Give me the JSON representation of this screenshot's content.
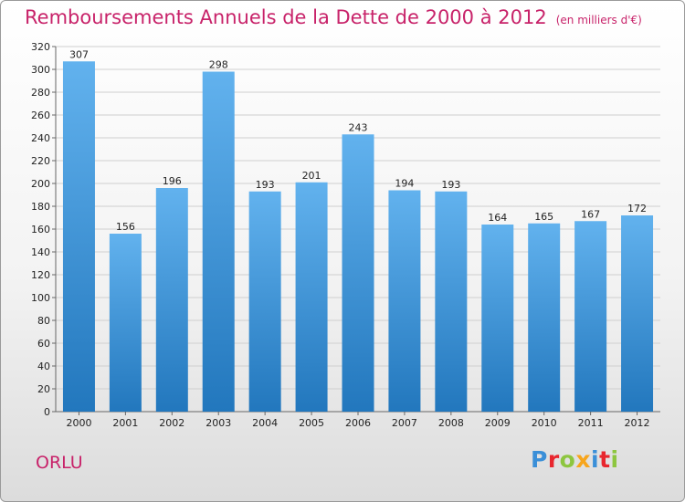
{
  "header": {
    "title": "Remboursements Annuels de la Dette de 2000 à 2012",
    "unit": "(en milliers d'€)"
  },
  "commune": "ORLU",
  "logo": {
    "text": "Proxiti",
    "letter_colors": [
      "#3a8fd8",
      "#e8262e",
      "#8dc63f",
      "#f7a51c",
      "#3a8fd8",
      "#e8262e",
      "#8dc63f"
    ]
  },
  "colors": {
    "title": "#c8236a",
    "bar_top": "#62b2ee",
    "bar_bottom": "#2277bd",
    "grid": "#cfcfcf"
  },
  "chart_data": {
    "type": "bar",
    "title": "Remboursements Annuels de la Dette de 2000 à 2012",
    "xlabel": "",
    "ylabel": "",
    "categories": [
      "2000",
      "2001",
      "2002",
      "2003",
      "2004",
      "2005",
      "2006",
      "2007",
      "2008",
      "2009",
      "2010",
      "2011",
      "2012"
    ],
    "values": [
      307,
      156,
      196,
      298,
      193,
      201,
      243,
      194,
      193,
      164,
      165,
      167,
      172
    ],
    "ylim": [
      0,
      320
    ],
    "yticks": [
      0,
      20,
      40,
      60,
      80,
      100,
      120,
      140,
      160,
      180,
      200,
      220,
      240,
      260,
      280,
      300,
      320
    ],
    "grid": true,
    "legend": "none"
  }
}
